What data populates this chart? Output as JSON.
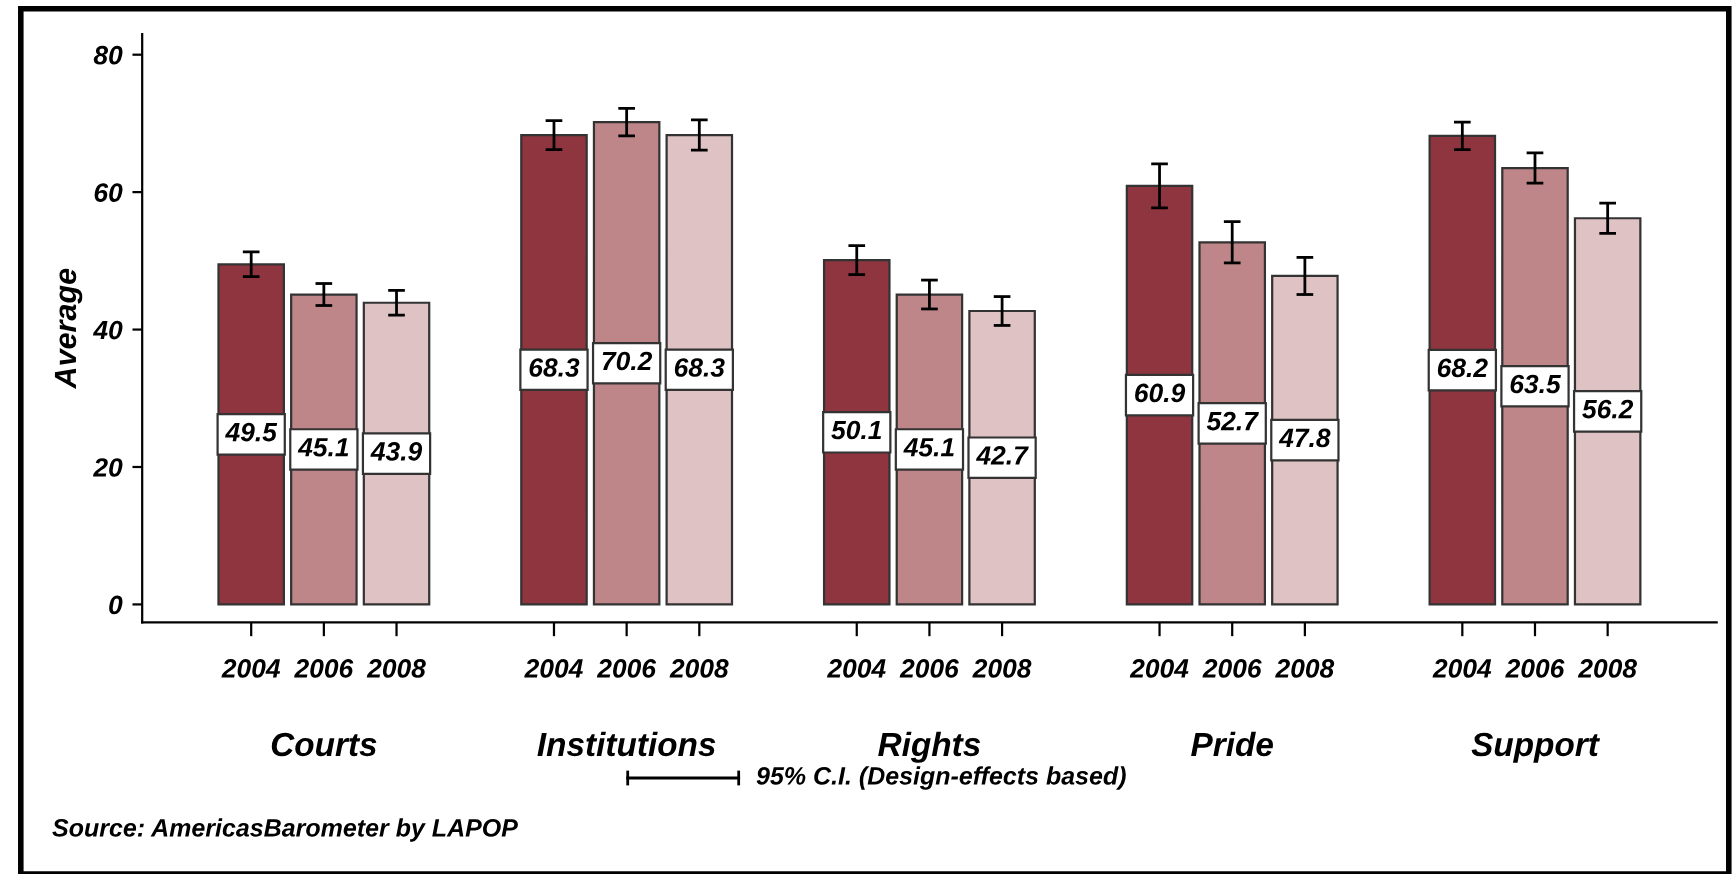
{
  "chart_data": {
    "type": "bar",
    "ylabel": "Average",
    "categories": [
      "Courts",
      "Institutions",
      "Rights",
      "Pride",
      "Support"
    ],
    "series": [
      {
        "name": "2004",
        "color": "#8f3540",
        "values": [
          49.5,
          68.3,
          50.1,
          60.9,
          68.2
        ],
        "errors": [
          1.8,
          2.1,
          2.1,
          3.2,
          2.0
        ]
      },
      {
        "name": "2006",
        "color": "#be8688",
        "values": [
          45.1,
          70.2,
          45.1,
          52.7,
          63.5
        ],
        "errors": [
          1.6,
          2.0,
          2.1,
          3.0,
          2.2
        ]
      },
      {
        "name": "2008",
        "color": "#dfc2c3",
        "values": [
          43.9,
          68.3,
          42.7,
          47.8,
          56.2
        ],
        "errors": [
          1.8,
          2.2,
          2.1,
          2.7,
          2.2
        ]
      }
    ],
    "ylim": [
      -2.6,
      83
    ],
    "yticks": [
      0,
      20,
      40,
      60,
      80
    ],
    "grid": false,
    "legend": false,
    "data_labels": true,
    "annotations": [
      "95% C.I. (Design-effects based)",
      "Source: AmericasBarometer by LAPOP"
    ]
  }
}
